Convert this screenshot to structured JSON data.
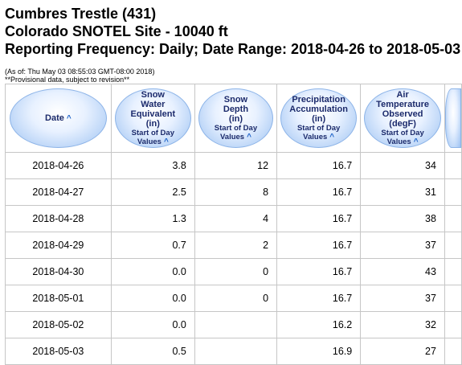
{
  "header": {
    "line1": "Cumbres Trestle (431)",
    "line2": "Colorado SNOTEL Site - 10040 ft",
    "line3": "Reporting Frequency: Daily; Date Range: 2018-04-26 to 2018-05-03"
  },
  "notes": {
    "as_of": "(As of: Thu May 03 08:55:03 GMT-08:00 2018)",
    "provisional": "**Provisional data, subject to revision**"
  },
  "table": {
    "sort_arrow": "^",
    "columns": [
      {
        "lines": [
          "Date"
        ],
        "sub": []
      },
      {
        "lines": [
          "Snow",
          "Water",
          "Equivalent",
          "(in)"
        ],
        "sub": [
          "Start of Day",
          "Values"
        ]
      },
      {
        "lines": [
          "Snow",
          "Depth",
          "(in)"
        ],
        "sub": [
          "Start of Day",
          "Values"
        ]
      },
      {
        "lines": [
          "Precipitation",
          "Accumulation",
          "(in)"
        ],
        "sub": [
          "Start of Day",
          "Values"
        ]
      },
      {
        "lines": [
          "Air",
          "Temperature",
          "Observed",
          "(degF)"
        ],
        "sub": [
          "Start of Day",
          "Values"
        ]
      }
    ],
    "rows": [
      [
        "2018-04-26",
        "3.8",
        "12",
        "16.7",
        "34"
      ],
      [
        "2018-04-27",
        "2.5",
        "8",
        "16.7",
        "31"
      ],
      [
        "2018-04-28",
        "1.3",
        "4",
        "16.7",
        "38"
      ],
      [
        "2018-04-29",
        "0.7",
        "2",
        "16.7",
        "37"
      ],
      [
        "2018-04-30",
        "0.0",
        "0",
        "16.7",
        "43"
      ],
      [
        "2018-05-01",
        "0.0",
        "0",
        "16.7",
        "37"
      ],
      [
        "2018-05-02",
        "0.0",
        "",
        "16.2",
        "32"
      ],
      [
        "2018-05-03",
        "0.5",
        "",
        "16.9",
        "27"
      ]
    ]
  }
}
